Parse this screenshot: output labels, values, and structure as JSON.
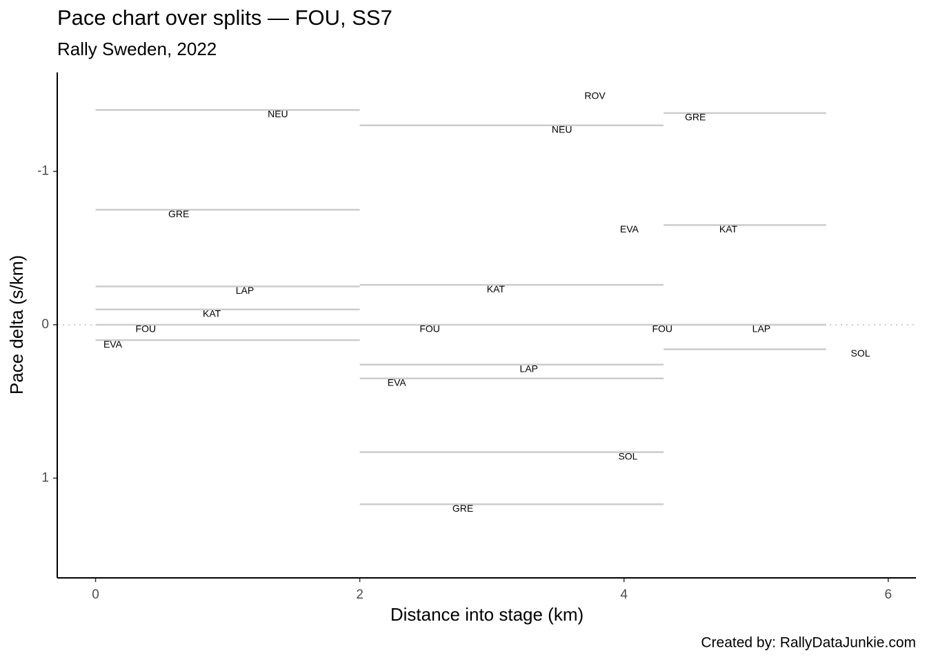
{
  "chart_data": {
    "type": "segments",
    "title": "Pace chart over splits — FOU, SS7",
    "subtitle": "Rally Sweden, 2022",
    "x_label": "Distance into stage (km)",
    "y_label": "Pace delta (s/km)",
    "caption": "Created by: RallyDataJunkie.com",
    "xlim": [
      -0.29,
      6.21
    ],
    "xticks": [
      0,
      2,
      4,
      6
    ],
    "ylim": [
      1.65,
      -1.645
    ],
    "yticks": [
      -1,
      0,
      1
    ],
    "line_color": "#cccccc",
    "lines": {
      "x_start": [
        0,
        0,
        0,
        0,
        0,
        0,
        2,
        2,
        2,
        2,
        2,
        2,
        2,
        4.3,
        4.3,
        4.3,
        4.3,
        4.3
      ],
      "x_end": [
        2,
        2,
        2,
        2,
        2,
        2,
        4.3,
        4.3,
        4.3,
        4.3,
        4.3,
        4.3,
        4.3,
        5.53,
        5.53,
        5.53,
        5.53,
        5.53
      ],
      "values": [
        -1.4,
        -0.75,
        -0.25,
        -0.1,
        0,
        0.1,
        -1.3,
        -0.26,
        0,
        0.26,
        0.35,
        0.83,
        1.17,
        -1.38,
        -0.65,
        0,
        0,
        0.16
      ]
    },
    "labels": [
      {
        "text": "NEU",
        "x": 1.38,
        "y": -1.4
      },
      {
        "text": "GRE",
        "x": 0.63,
        "y": -0.75
      },
      {
        "text": "LAP",
        "x": 1.13,
        "y": -0.25
      },
      {
        "text": "KAT",
        "x": 0.88,
        "y": -0.1
      },
      {
        "text": "FOU",
        "x": 0.38,
        "y": 0
      },
      {
        "text": "EVA",
        "x": 0.13,
        "y": 0.1
      },
      {
        "text": "NEU",
        "x": 3.53,
        "y": -1.3
      },
      {
        "text": "KAT",
        "x": 3.03,
        "y": -0.26
      },
      {
        "text": "FOU",
        "x": 2.53,
        "y": 0
      },
      {
        "text": "LAP",
        "x": 3.28,
        "y": 0.26
      },
      {
        "text": "EVA",
        "x": 2.28,
        "y": 0.35
      },
      {
        "text": "SOL",
        "x": 4.03,
        "y": 0.83
      },
      {
        "text": "GRE",
        "x": 2.78,
        "y": 1.17
      },
      {
        "text": "ROV",
        "x": 3.78,
        "y": -1.52
      },
      {
        "text": "EVA",
        "x": 4.04,
        "y": -0.65
      },
      {
        "text": "GRE",
        "x": 4.54,
        "y": -1.38
      },
      {
        "text": "KAT",
        "x": 4.79,
        "y": -0.65
      },
      {
        "text": "FOU",
        "x": 4.29,
        "y": 0
      },
      {
        "text": "LAP",
        "x": 5.04,
        "y": 0
      },
      {
        "text": "SOL",
        "x": 5.79,
        "y": 0.16
      }
    ]
  }
}
